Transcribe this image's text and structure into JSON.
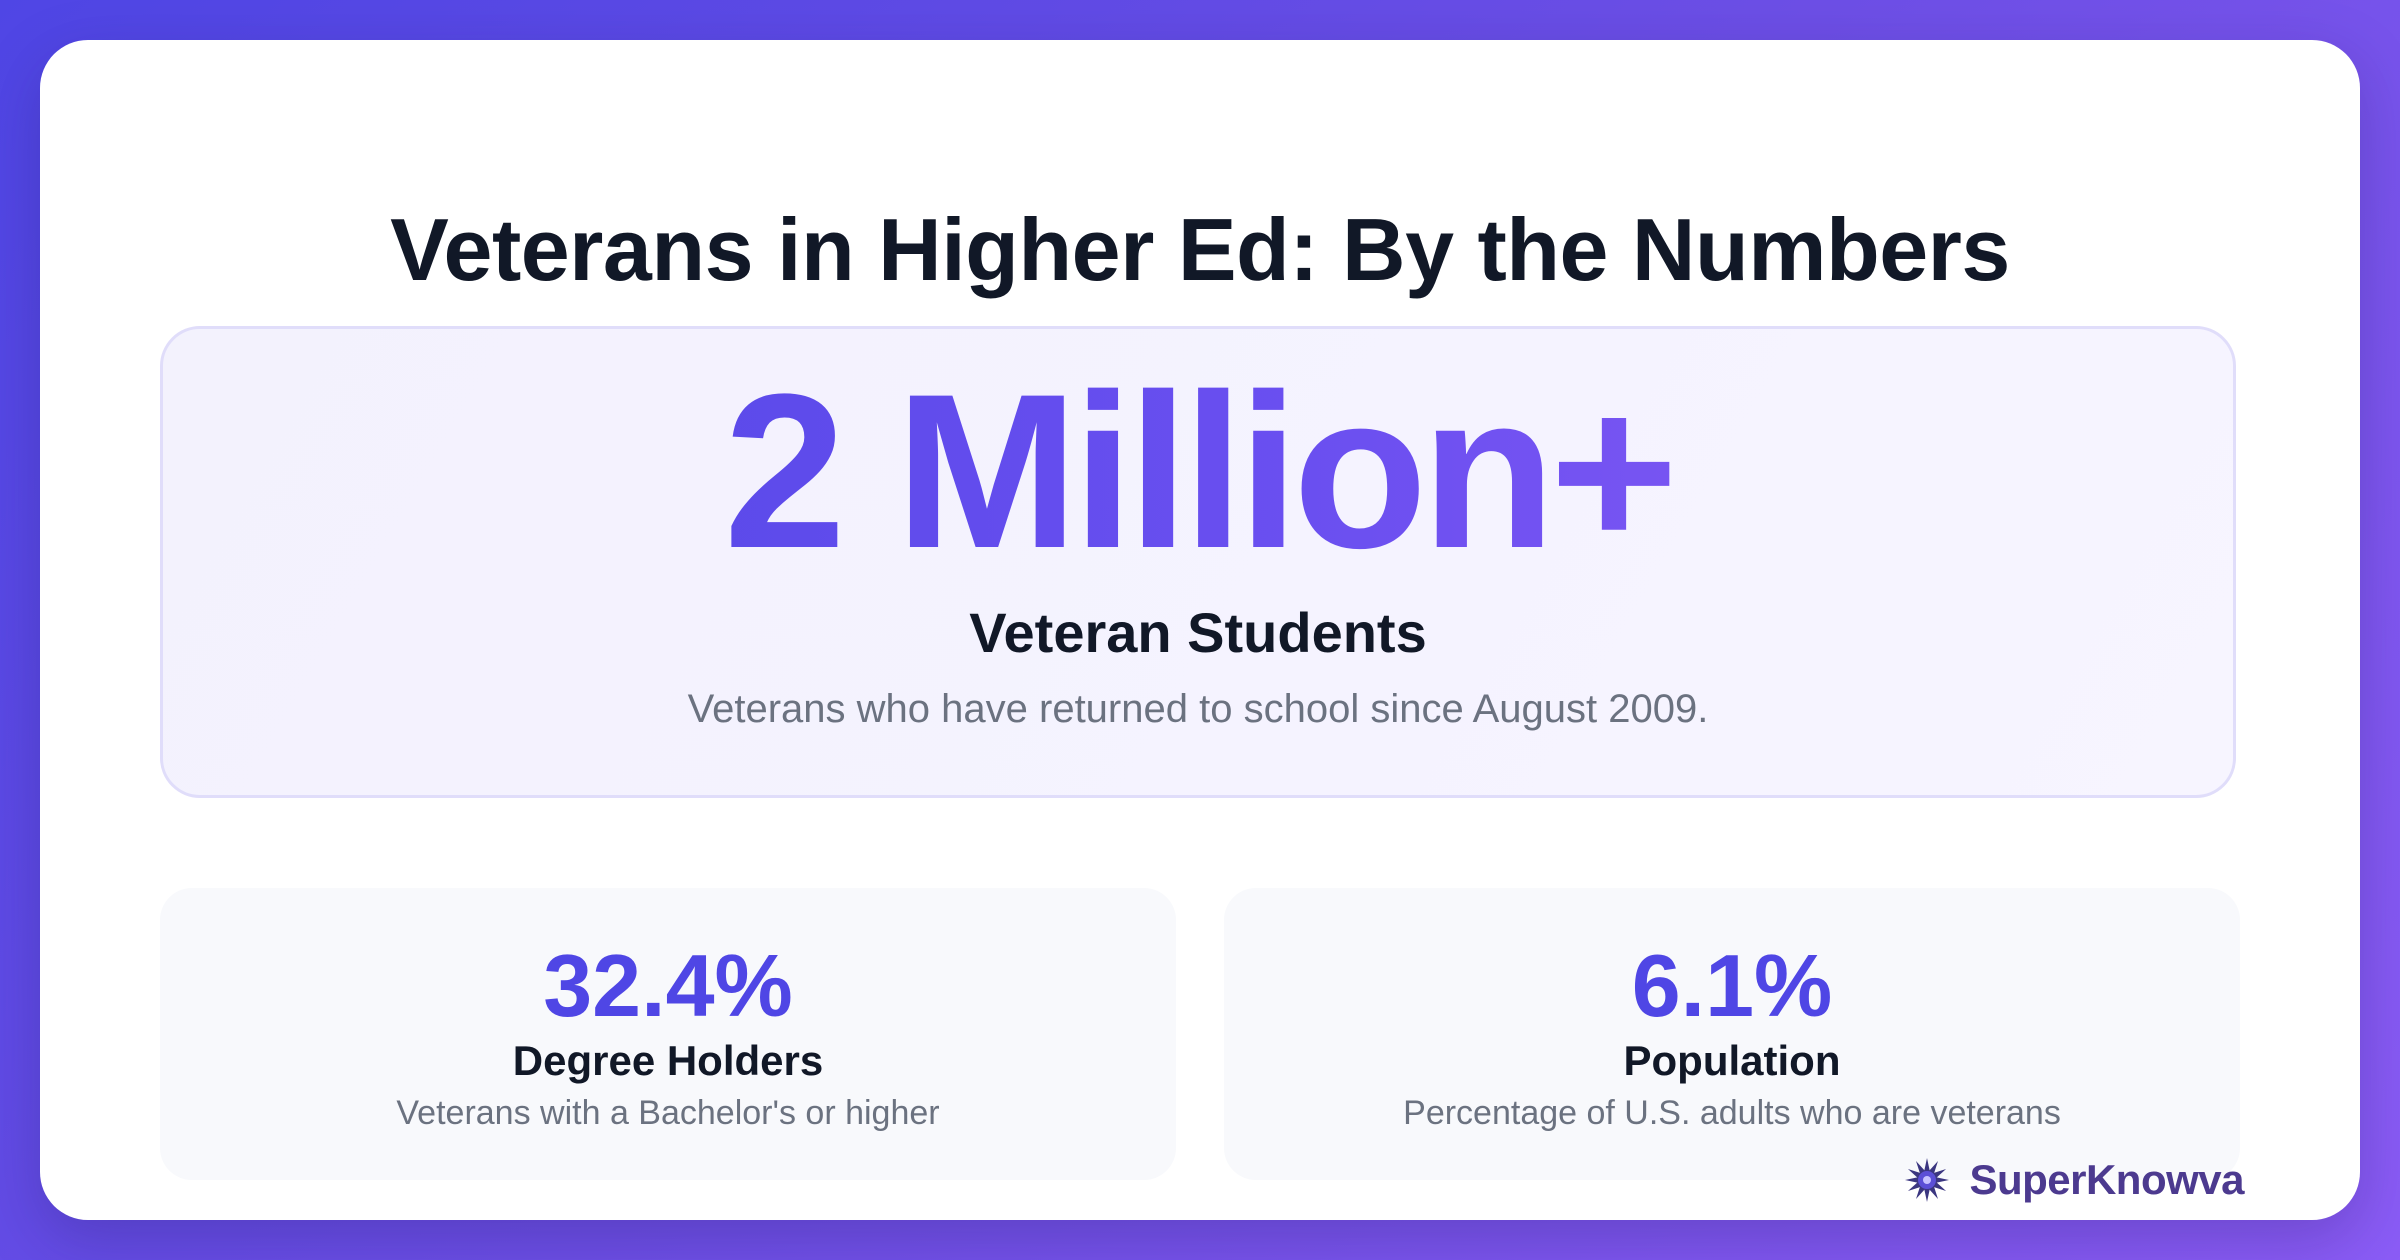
{
  "title": "Veterans in Higher Ed: By the Numbers",
  "hero": {
    "number": "2 Million+",
    "label": "Veteran Students",
    "description": "Veterans who have returned to school since August 2009."
  },
  "stats": [
    {
      "value": "32.4%",
      "label": "Degree Holders",
      "description": "Veterans with a Bachelor's or higher"
    },
    {
      "value": "6.1%",
      "label": "Population",
      "description": "Percentage of U.S. adults who are veterans"
    }
  ],
  "brand": {
    "name": "SuperKnowva",
    "icon": "starburst-logo-icon"
  },
  "colors": {
    "accent": "#4f46e5",
    "accent_end": "#8b5cf6",
    "title": "#111827",
    "muted": "#6b7280",
    "brand_text": "#4c3a8f"
  }
}
